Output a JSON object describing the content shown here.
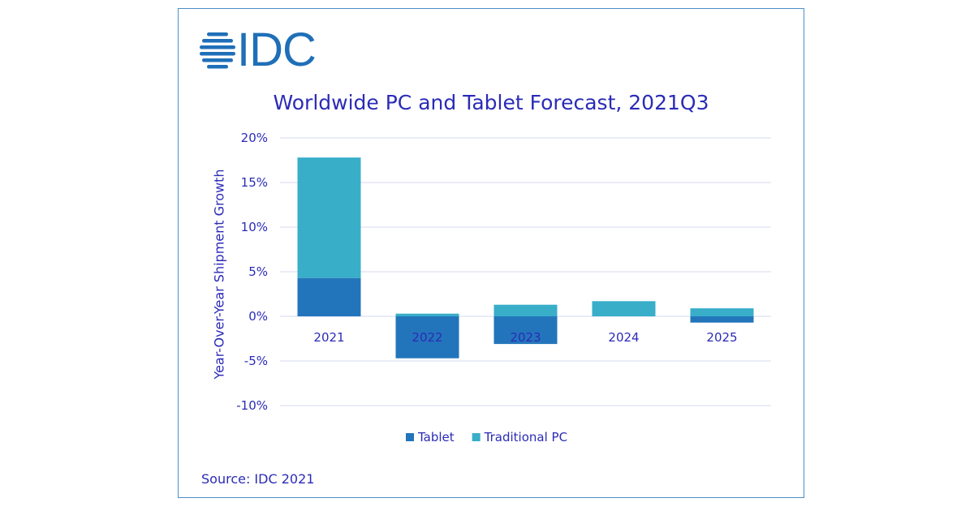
{
  "logo": {
    "text": "IDC"
  },
  "source": "Source: IDC 2021",
  "colors": {
    "tablet": "#2375bb",
    "traditional_pc": "#38aec9",
    "text": "#2b2bb8",
    "grid": "#d6d9ef",
    "border": "#4a90c8"
  },
  "chart_data": {
    "type": "bar",
    "stacked": true,
    "title": "Worldwide PC and Tablet Forecast, 2021Q3",
    "xlabel": "",
    "ylabel": "Year-Over-Year  Shipment Growth",
    "ylim": [
      -10,
      20
    ],
    "yticks": [
      20,
      15,
      10,
      5,
      0,
      -5,
      -10
    ],
    "ytick_labels": [
      "20%",
      "15%",
      "10%",
      "5%",
      "0%",
      "-5%",
      "-10%"
    ],
    "categories": [
      "2021",
      "2022",
      "2023",
      "2024",
      "2025"
    ],
    "series": [
      {
        "name": "Tablet",
        "values": [
          4.3,
          -4.7,
          -3.1,
          0.0,
          -0.7
        ]
      },
      {
        "name": "Traditional PC",
        "values": [
          13.5,
          0.3,
          1.3,
          1.7,
          0.9
        ]
      }
    ],
    "legend": "bottom",
    "grid": true
  }
}
